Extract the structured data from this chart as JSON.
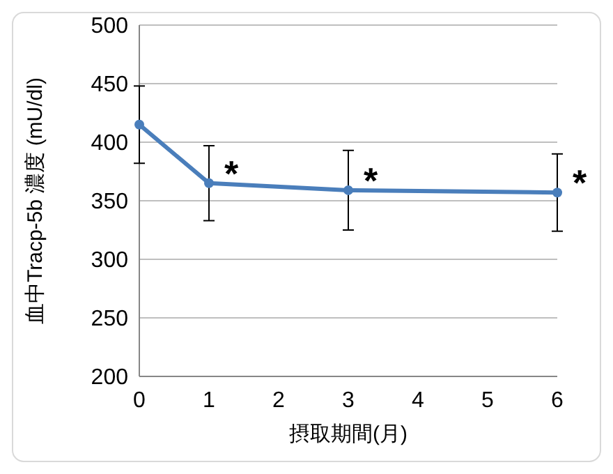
{
  "chart_data": {
    "type": "line",
    "xlabel": "摂取期間(月)",
    "ylabel": "血中Tracp-5b 濃度 (mU/dl)",
    "x": [
      0,
      1,
      3,
      6
    ],
    "series": [
      {
        "color": "#4a7ebb",
        "values": [
          415,
          365,
          359,
          357
        ],
        "errors": [
          33,
          32,
          34,
          33
        ]
      }
    ],
    "xlim": [
      0,
      6
    ],
    "xticks": [
      0,
      1,
      2,
      3,
      4,
      5,
      6
    ],
    "ylim": [
      200,
      500
    ],
    "yticks": [
      200,
      250,
      300,
      350,
      400,
      450,
      500
    ],
    "grid": "y",
    "marker": "circle",
    "line_style": "solid",
    "annotations": [
      {
        "text": "*",
        "x": 1,
        "y": 365
      },
      {
        "text": "*",
        "x": 3,
        "y": 359
      },
      {
        "text": "*",
        "x": 6,
        "y": 357
      }
    ]
  }
}
